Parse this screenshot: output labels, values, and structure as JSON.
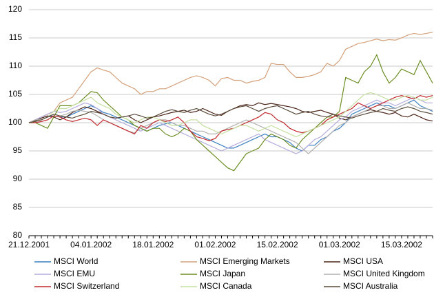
{
  "chart_data": {
    "type": "line",
    "categories": [
      "21.12.2001",
      null,
      null,
      null,
      null,
      null,
      null,
      null,
      null,
      null,
      "04.01.2002",
      null,
      null,
      null,
      null,
      null,
      null,
      null,
      null,
      null,
      "18.01.2002",
      null,
      null,
      null,
      null,
      null,
      null,
      null,
      null,
      null,
      "01.02.2002",
      null,
      null,
      null,
      null,
      null,
      null,
      null,
      null,
      null,
      "15.02.2002",
      null,
      null,
      null,
      null,
      null,
      null,
      null,
      null,
      null,
      "01.03.2002",
      null,
      null,
      null,
      null,
      null,
      null,
      null,
      null,
      null,
      "15.03.2002",
      null,
      null,
      null,
      null,
      null
    ],
    "ylim": [
      80,
      120
    ],
    "yticks": [
      80,
      85,
      90,
      95,
      100,
      105,
      110,
      115,
      120
    ],
    "grid": true,
    "series": [
      {
        "name": "MSCI World",
        "color": "#3a7fc1",
        "values": [
          100,
          100.3,
          100.5,
          101,
          101.2,
          101,
          101,
          101.5,
          102,
          102.5,
          103,
          102.5,
          101.8,
          101.5,
          101,
          100.5,
          100,
          99.5,
          99,
          98.5,
          99,
          99.5,
          99.8,
          100,
          99.5,
          99,
          98.5,
          98,
          97.5,
          97,
          96.5,
          96,
          95.5,
          95.5,
          96,
          96.5,
          97,
          97.5,
          98,
          97.5,
          97.5,
          97,
          96.5,
          95.5,
          95,
          96,
          96,
          97,
          97.5,
          98.5,
          99,
          100,
          101.5,
          102,
          102.5,
          103,
          103.5,
          103,
          103,
          102.5,
          103,
          103.5,
          104,
          103,
          102.5,
          102
        ]
      },
      {
        "name": "MSCI Emerging Markets",
        "color": "#d4a07a",
        "values": [
          100,
          100.5,
          101,
          101.5,
          102,
          103.5,
          104,
          104.5,
          106,
          107.5,
          109,
          109.7,
          109.3,
          109,
          108,
          107,
          106.5,
          106,
          105,
          105.5,
          105.5,
          106,
          106,
          106.5,
          107,
          107.5,
          108,
          108.3,
          108,
          107.5,
          106.5,
          107.8,
          108,
          107.5,
          107.5,
          107,
          107.3,
          107.5,
          108,
          110.5,
          110.3,
          110.3,
          109,
          108,
          108,
          108.2,
          108.5,
          109,
          110.5,
          110,
          111,
          113,
          113.5,
          114,
          114.2,
          114.5,
          114.8,
          114.5,
          114.7,
          114.6,
          115,
          115.5,
          115.8,
          115.6,
          115.8,
          116
        ]
      },
      {
        "name": "MSCI USA",
        "color": "#4a2418",
        "values": [
          100,
          100.3,
          100.8,
          101.2,
          101,
          100.5,
          101,
          101.8,
          102.3,
          102.8,
          102.5,
          102,
          101.5,
          101,
          100.8,
          101,
          101.2,
          100.5,
          100,
          100.5,
          101,
          101.2,
          101.5,
          101.8,
          102,
          102.2,
          101.8,
          102,
          102.5,
          102,
          101.5,
          101.3,
          102,
          102.5,
          103,
          103.2,
          103,
          103.5,
          103.2,
          103.4,
          103.2,
          103,
          102.8,
          102.5,
          102,
          101.8,
          102,
          102.2,
          101.8,
          101.5,
          100.8,
          100.5,
          101,
          101.5,
          102,
          102.3,
          102,
          101.8,
          101.5,
          101.8,
          101.2,
          101,
          101.5,
          101,
          100.5,
          100.3
        ]
      },
      {
        "name": "MSCI EMU",
        "color": "#b4acdc",
        "values": [
          100,
          100.5,
          101,
          101.5,
          102,
          101.8,
          102,
          102.5,
          103,
          103.5,
          103.2,
          102.5,
          101.5,
          101,
          100.5,
          100,
          99.5,
          99,
          98.5,
          99,
          99.5,
          100,
          99.5,
          99,
          98.5,
          98,
          97.5,
          97,
          96.5,
          96,
          95.5,
          95,
          95.5,
          96,
          96.5,
          97,
          97.5,
          98,
          97,
          96.5,
          96,
          95.5,
          95,
          94.5,
          95,
          96,
          97,
          97.5,
          98.5,
          99.5,
          100.5,
          101,
          102,
          102.5,
          103,
          103.5,
          104,
          103.5,
          103.5,
          103,
          103.5,
          104,
          104.5,
          104,
          103.5,
          103.5
        ]
      },
      {
        "name": "MSCI Japan",
        "color": "#6b8e23",
        "values": [
          100,
          100,
          99.5,
          99,
          101,
          103,
          103,
          103,
          103.5,
          104.5,
          105.5,
          105.3,
          104,
          103,
          102,
          101,
          100.5,
          99.5,
          99,
          98.5,
          99,
          99,
          98,
          97.5,
          98,
          99,
          98.5,
          97,
          96,
          95,
          94,
          93,
          92,
          91.5,
          93,
          94.5,
          95,
          95.5,
          97,
          98,
          97.5,
          97,
          96,
          95.5,
          97,
          98,
          99,
          100,
          101,
          101,
          102,
          108,
          107.5,
          107,
          109,
          110,
          112,
          109,
          107,
          108,
          109.5,
          109,
          108.5,
          111,
          109,
          107
        ]
      },
      {
        "name": "MSCI United Kingdom",
        "color": "#b0b0b0",
        "values": [
          100,
          100.5,
          100.5,
          101,
          101.5,
          101.2,
          101.5,
          102,
          102.2,
          102,
          101.8,
          101.2,
          100.5,
          100,
          99.5,
          99,
          98.5,
          98.2,
          99,
          99.5,
          100,
          100.5,
          100.5,
          100,
          99.5,
          99.5,
          99,
          98.5,
          98.5,
          98,
          98,
          98.5,
          99,
          99.5,
          100,
          100.5,
          100,
          99.5,
          99,
          98.5,
          98,
          97.5,
          97,
          96.5,
          95.5,
          94.5,
          95.5,
          96.5,
          97.5,
          98.5,
          99.5,
          100,
          101,
          101.5,
          102,
          102.5,
          103,
          103,
          102.5,
          102.5,
          103,
          103.5,
          103,
          102.5,
          102.5,
          102.2
        ]
      },
      {
        "name": "MSCI Switzerland",
        "color": "#c0282d",
        "values": [
          100,
          100,
          100.2,
          100.5,
          101.2,
          101,
          100.5,
          100.2,
          100.5,
          100.8,
          100.5,
          99.5,
          100.5,
          100,
          99.5,
          99,
          98.5,
          98,
          99.5,
          99,
          100,
          100.5,
          100.2,
          100.5,
          101,
          100,
          98.5,
          97.5,
          97.2,
          96.8,
          97.2,
          98.5,
          98.8,
          99,
          99.5,
          100,
          100.5,
          101,
          101.8,
          101.5,
          100.5,
          100,
          99,
          98.5,
          98.2,
          98.5,
          99,
          99.5,
          100.5,
          101,
          101.5,
          102,
          102.5,
          103.5,
          103,
          102.5,
          103,
          103.5,
          104,
          104.5,
          104.8,
          104.5,
          104.2,
          104.8,
          104.5,
          104.8
        ]
      },
      {
        "name": "MSCI Canada",
        "color": "#c5dfa0",
        "values": [
          100,
          100.2,
          100.5,
          101,
          102,
          102.5,
          102.5,
          103,
          103.5,
          104,
          104.5,
          103.5,
          103,
          102.5,
          101.5,
          101,
          100.5,
          100,
          100.5,
          101,
          101,
          100.5,
          100,
          99.5,
          99.5,
          100,
          100.5,
          100.5,
          99.5,
          99,
          98.5,
          98,
          98.5,
          99,
          99.5,
          99.5,
          99,
          98.5,
          99,
          99.5,
          99,
          98.5,
          98,
          97.5,
          98,
          98.5,
          99,
          99.5,
          100,
          100.5,
          101,
          102,
          103,
          104,
          105,
          105.3,
          105,
          104.5,
          104,
          104,
          104.5,
          104.8,
          104.5,
          104,
          104,
          104.5
        ]
      },
      {
        "name": "MSCI Australia",
        "color": "#5a4a3a",
        "values": [
          100,
          100.2,
          100.5,
          101,
          101.5,
          101.2,
          101,
          100.8,
          101.2,
          101.5,
          102,
          101.8,
          101.5,
          101,
          100.8,
          101,
          101.2,
          101.5,
          101.2,
          100.8,
          101,
          101.5,
          102,
          102.3,
          102,
          101.8,
          102.2,
          102.5,
          102,
          101.5,
          101.2,
          101.5,
          102,
          102.5,
          102.8,
          103,
          102.5,
          102,
          102.5,
          102.8,
          103,
          102.5,
          102,
          101.5,
          101.8,
          102,
          101.5,
          101.2,
          101,
          101.5,
          101.2,
          101,
          100.8,
          101.2,
          101.5,
          101.8,
          102,
          102.5,
          102.2,
          102,
          102.5,
          102.8,
          102.5,
          102,
          101.8,
          101.5
        ]
      }
    ]
  }
}
